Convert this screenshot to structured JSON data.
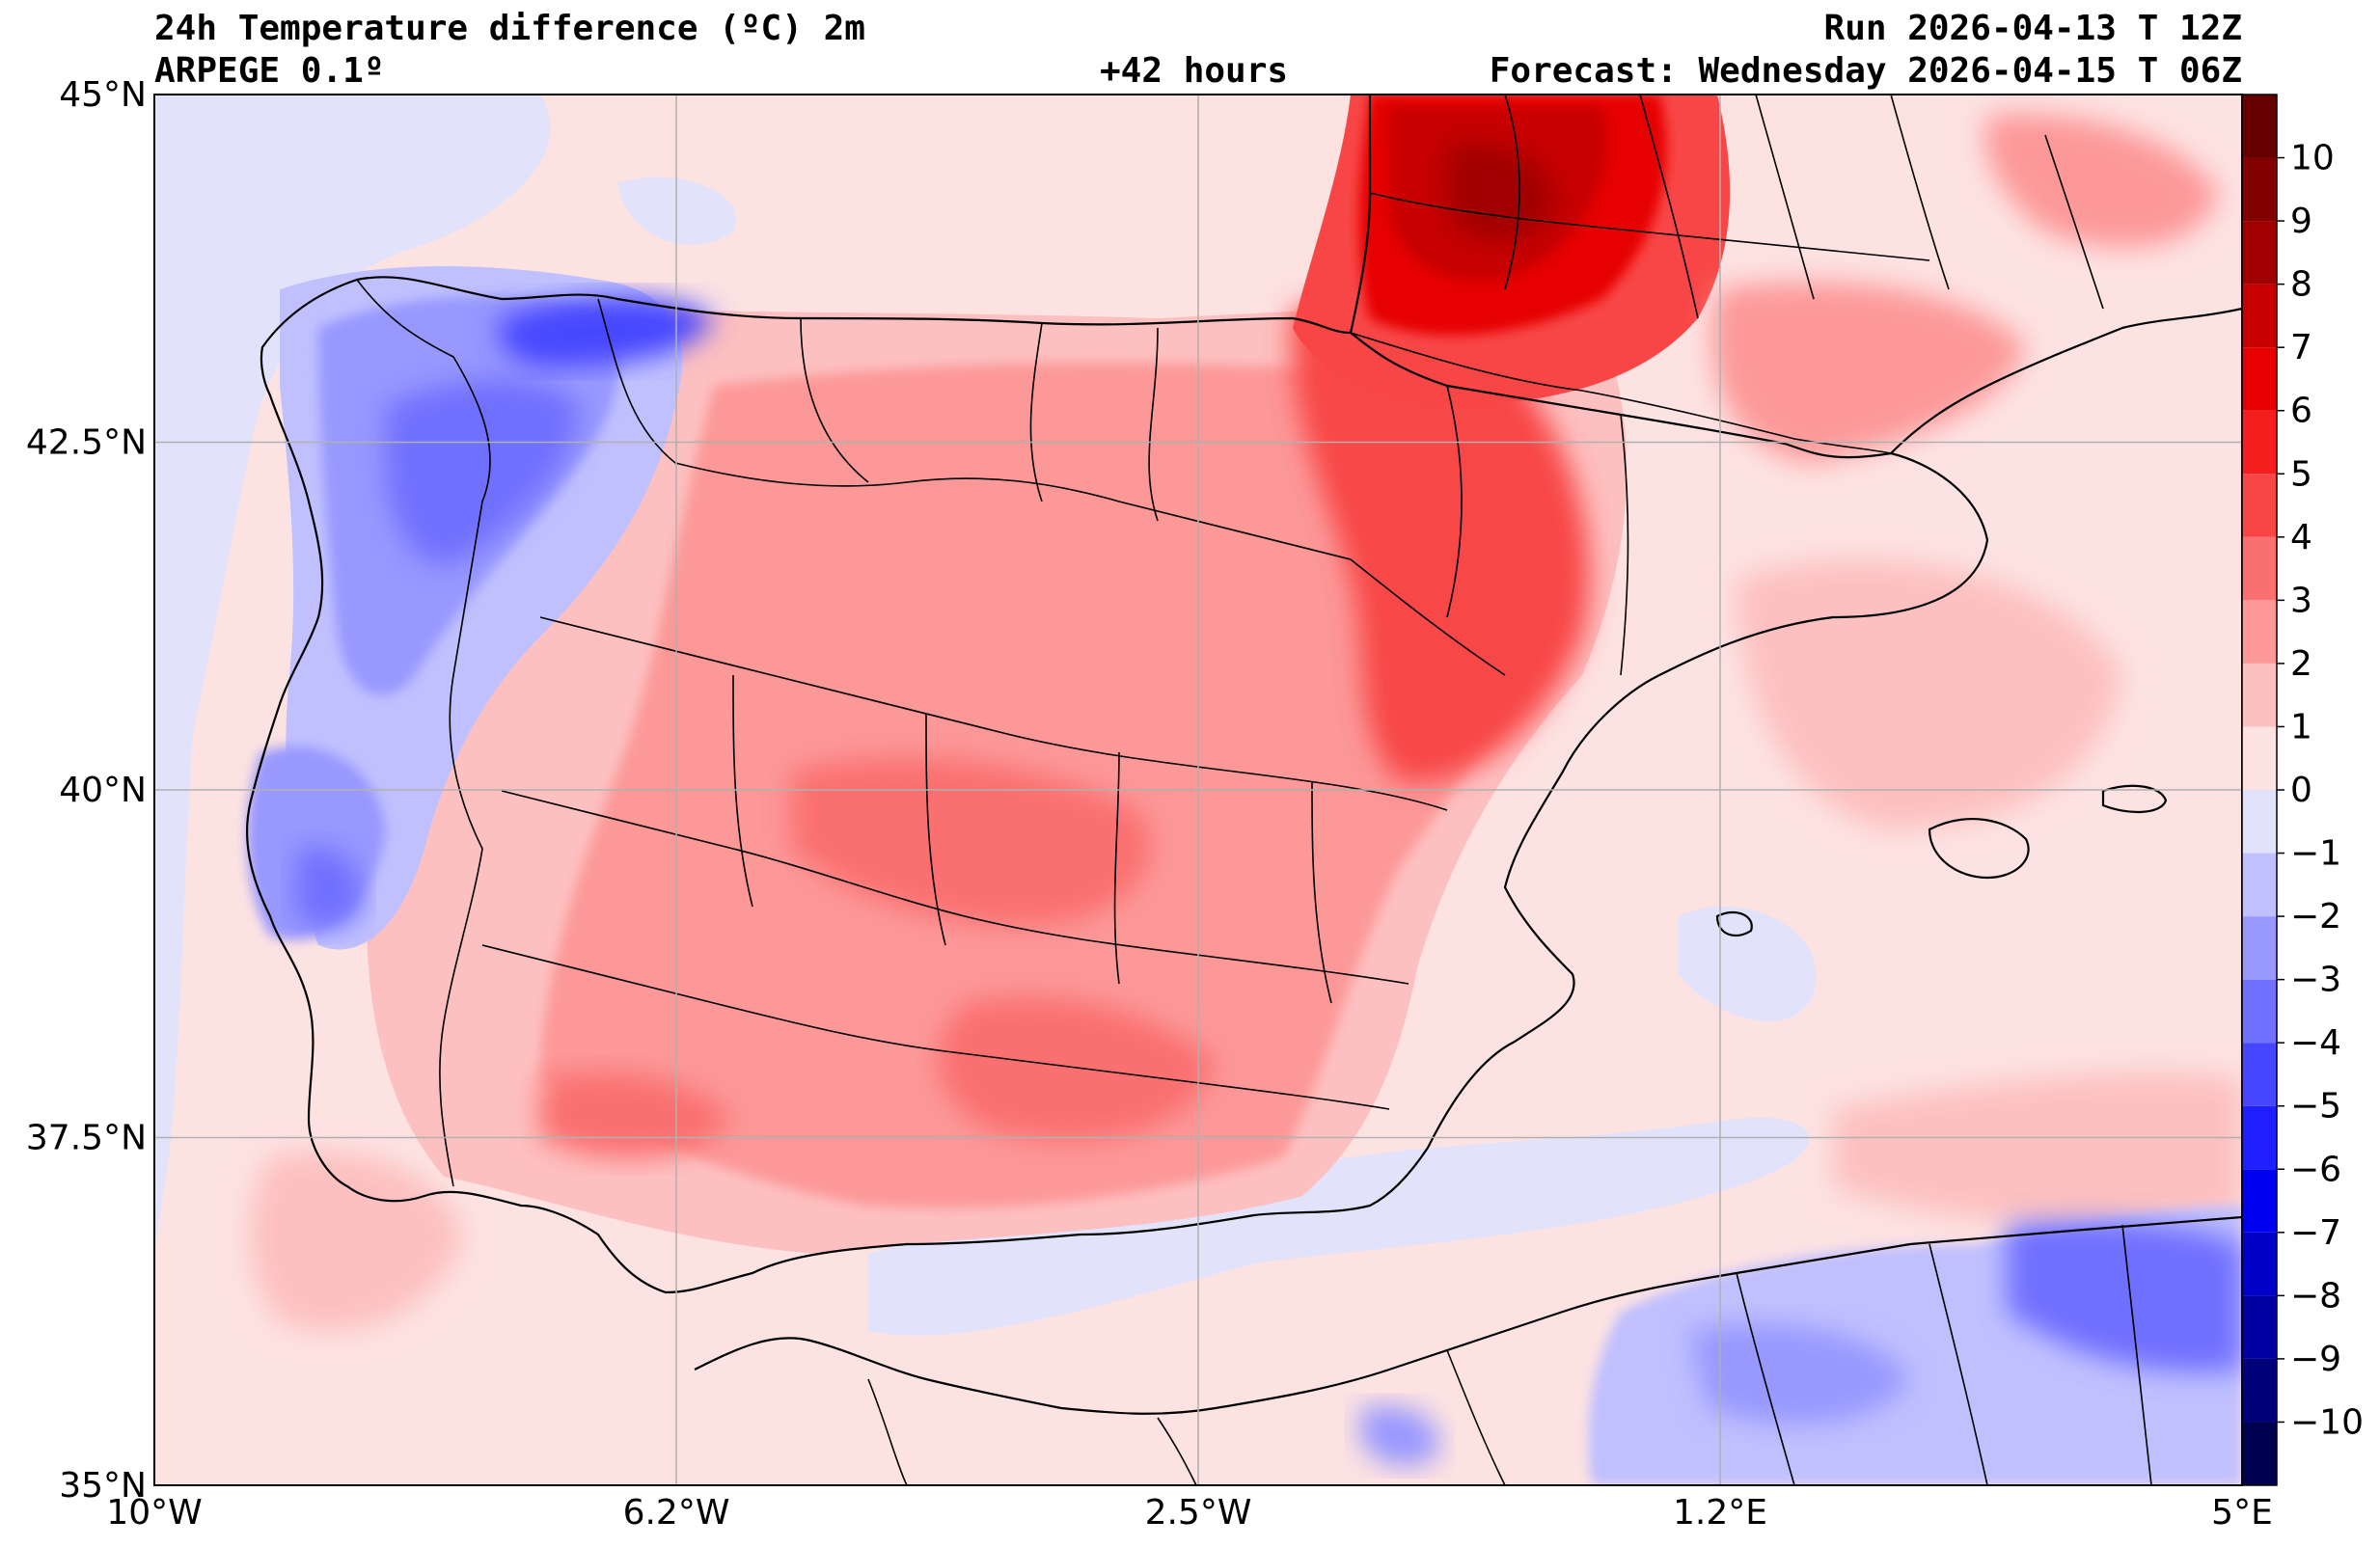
{
  "header": {
    "title": "24h Temperature difference (ºC) 2m",
    "model": "ARPEGE 0.1º",
    "lead": "+42 hours",
    "run": "Run 2026-04-13 T 12Z",
    "forecast": "Forecast: Wednesday 2026-04-15 T 06Z"
  },
  "map": {
    "lon_range": [
      -10,
      5
    ],
    "lat_range": [
      35,
      45
    ],
    "lon_ticks": [
      {
        "value": -10,
        "label": "10°W"
      },
      {
        "value": -6.25,
        "label": "6.2°W"
      },
      {
        "value": -2.5,
        "label": "2.5°W"
      },
      {
        "value": 1.25,
        "label": "1.2°E"
      },
      {
        "value": 5,
        "label": "5°E"
      }
    ],
    "lat_ticks": [
      {
        "value": 45,
        "label": "45°N"
      },
      {
        "value": 42.5,
        "label": "42.5°N"
      },
      {
        "value": 40,
        "label": "40°N"
      },
      {
        "value": 37.5,
        "label": "37.5°N"
      },
      {
        "value": 35,
        "label": "35°N"
      }
    ]
  },
  "colorbar": {
    "unit": "ºC",
    "levels": [
      -11,
      -10,
      -9,
      -8,
      -7,
      -6,
      -5,
      -4,
      -3,
      -2,
      -1,
      0,
      1,
      2,
      3,
      4,
      5,
      6,
      7,
      8,
      9,
      10,
      11
    ],
    "colors": [
      "#000050",
      "#000078",
      "#0000a0",
      "#0000c8",
      "#0000f0",
      "#1e1eff",
      "#4646ff",
      "#7070ff",
      "#9898ff",
      "#c0c0ff",
      "#e2e2fb",
      "#fde2e2",
      "#fdc0c0",
      "#fc9898",
      "#fa7070",
      "#f84646",
      "#f51e1e",
      "#e60000",
      "#c80000",
      "#a00000",
      "#820000",
      "#640000"
    ],
    "tick_labels": [
      "−10",
      "−9",
      "−8",
      "−7",
      "−6",
      "−5",
      "−4",
      "−3",
      "−2",
      "−1",
      "0",
      "1",
      "2",
      "3",
      "4",
      "5",
      "6",
      "7",
      "8",
      "9",
      "10"
    ]
  },
  "field_regions": [
    {
      "name": "nw-iberia-cooling",
      "lon": -7.6,
      "lat": 42.4,
      "rx": 1.6,
      "ry": 1.0,
      "value": -3
    },
    {
      "name": "galicia-cooling",
      "lon": -7.3,
      "lat": 43.3,
      "rx": 1.0,
      "ry": 0.4,
      "value": -3.5
    },
    {
      "name": "portugal-central-cooling",
      "lon": -8.4,
      "lat": 39.6,
      "rx": 0.6,
      "ry": 0.5,
      "value": -3
    },
    {
      "name": "aquitaine-warming",
      "lon": 0.3,
      "lat": 44.0,
      "rx": 1.3,
      "ry": 0.9,
      "value": 8
    },
    {
      "name": "ebro-warming",
      "lon": 0.0,
      "lat": 41.6,
      "rx": 1.0,
      "ry": 1.2,
      "value": 5
    },
    {
      "name": "central-spain-warming",
      "lon": -4.5,
      "lat": 39.6,
      "rx": 1.8,
      "ry": 0.5,
      "value": 4
    },
    {
      "name": "north-africa-cooling",
      "lon": 2.5,
      "lat": 36.0,
      "rx": 2.5,
      "ry": 0.6,
      "value": -2
    }
  ]
}
